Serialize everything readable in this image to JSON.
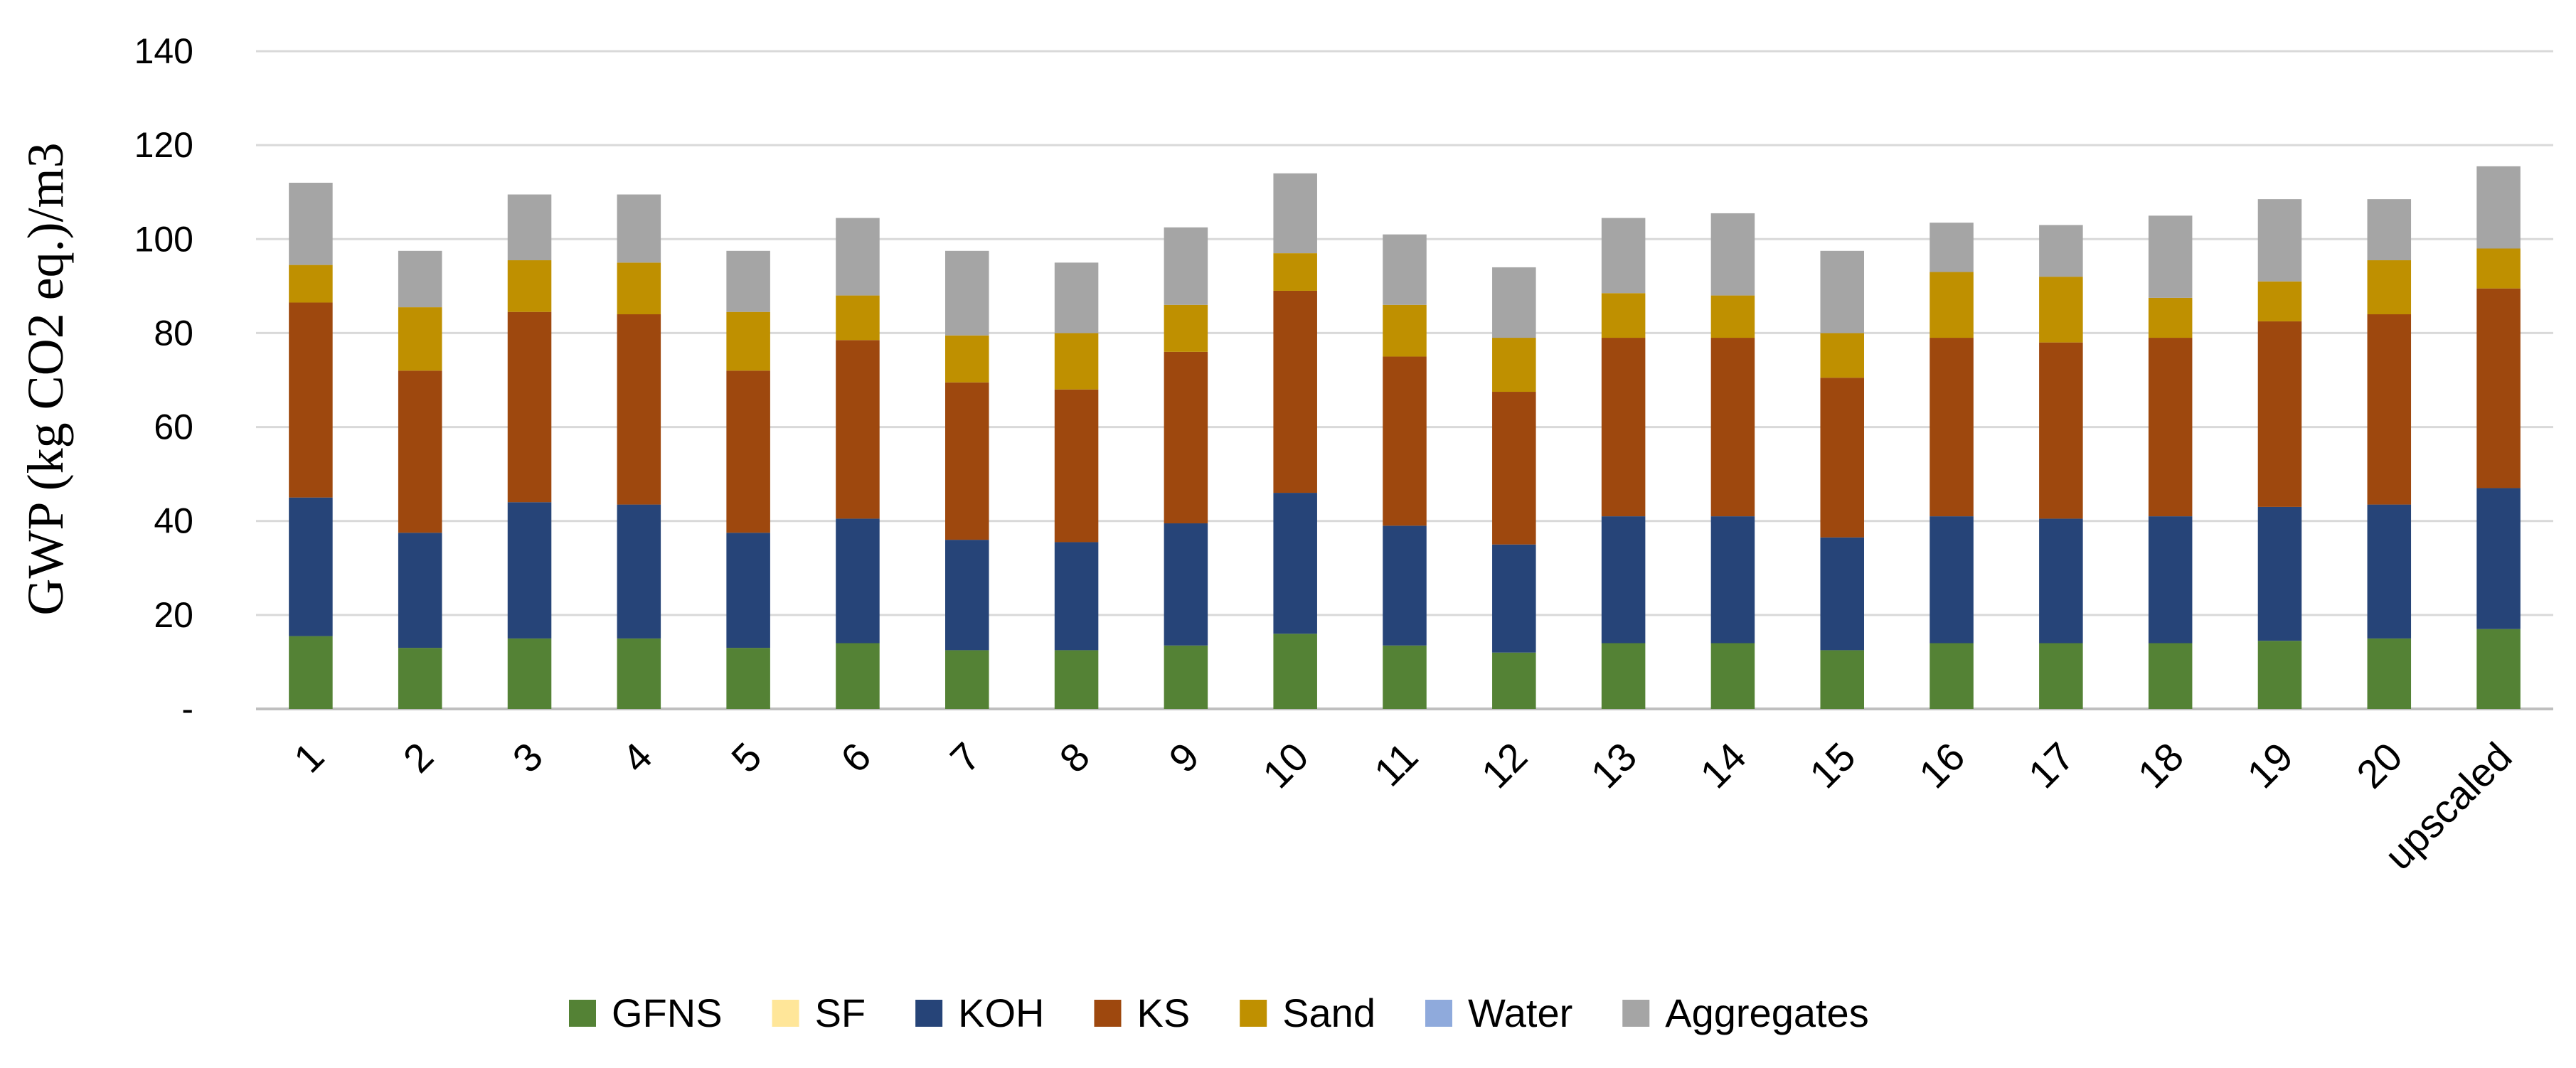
{
  "chart_data": {
    "type": "bar",
    "stacked": true,
    "title": "",
    "xlabel": "",
    "ylabel": "GWP (kg CO2 eq.)/m3",
    "ylim": [
      0,
      140
    ],
    "y_ticks": [
      "-",
      "20",
      "40",
      "60",
      "80",
      "100",
      "120",
      "140"
    ],
    "y_tick_values": [
      0,
      20,
      40,
      60,
      80,
      100,
      120,
      140
    ],
    "grid": true,
    "legend_position": "bottom",
    "categories": [
      "1",
      "2",
      "3",
      "4",
      "5",
      "6",
      "7",
      "8",
      "9",
      "10",
      "11",
      "12",
      "13",
      "14",
      "15",
      "16",
      "17",
      "18",
      "19",
      "20",
      "upscaled"
    ],
    "series": [
      {
        "name": "GFNS",
        "color": "#548235",
        "values": [
          15.5,
          13,
          15,
          15,
          13,
          14,
          12.5,
          12.5,
          13.5,
          16,
          13.5,
          12,
          14,
          14,
          12.5,
          14,
          14,
          14,
          14.5,
          15,
          17
        ]
      },
      {
        "name": "SF",
        "color": "#FFE699",
        "values": [
          0,
          0,
          0,
          0,
          0,
          0,
          0,
          0,
          0,
          0,
          0,
          0,
          0,
          0,
          0,
          0,
          0,
          0,
          0,
          0,
          0
        ]
      },
      {
        "name": "KOH",
        "color": "#264478",
        "values": [
          29.5,
          24.5,
          29,
          28.5,
          24.5,
          26.5,
          23.5,
          23,
          26,
          30,
          25.5,
          23,
          27,
          27,
          24,
          27,
          26.5,
          27,
          28.5,
          28.5,
          30
        ]
      },
      {
        "name": "KS",
        "color": "#9E480E",
        "values": [
          41.5,
          34.5,
          40.5,
          40.5,
          34.5,
          38,
          33.5,
          32.5,
          36.5,
          43,
          36,
          32.5,
          38,
          38,
          34,
          38,
          37.5,
          38,
          39.5,
          40.5,
          42.5
        ]
      },
      {
        "name": "Sand",
        "color": "#BF9000",
        "values": [
          8,
          13.5,
          11,
          11,
          12.5,
          9.5,
          10,
          12,
          10,
          8,
          11,
          11.5,
          9.5,
          9,
          9.5,
          14,
          14,
          8.5,
          8.5,
          11.5,
          8.5
        ]
      },
      {
        "name": "Water",
        "color": "#8FAADC",
        "values": [
          0,
          0,
          0,
          0,
          0,
          0,
          0,
          0,
          0,
          0,
          0,
          0,
          0,
          0,
          0,
          0,
          0,
          0,
          0,
          0,
          0
        ]
      },
      {
        "name": "Aggregates",
        "color": "#A5A5A5",
        "values": [
          17.5,
          12,
          14,
          14.5,
          13,
          16.5,
          18,
          15,
          16.5,
          17,
          15,
          15,
          16,
          17.5,
          17.5,
          10.5,
          11,
          17.5,
          17.5,
          13,
          17.5
        ]
      }
    ]
  }
}
